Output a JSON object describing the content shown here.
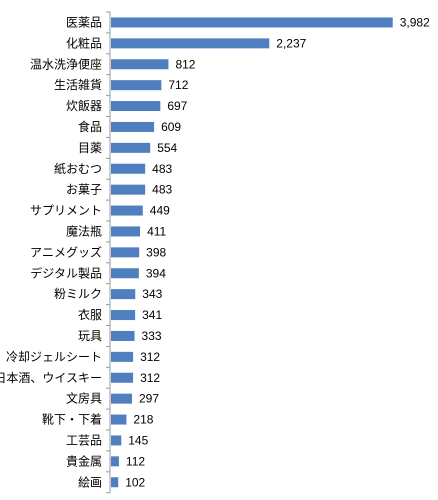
{
  "chart_data": {
    "type": "bar",
    "orientation": "horizontal",
    "title": "",
    "xlabel": "",
    "ylabel": "",
    "grid": false,
    "legend": "none",
    "bar_color": "#4f7fbf",
    "xlim": [
      0,
      4000
    ],
    "categories": [
      "医薬品",
      "化粧品",
      "温水洗浄便座",
      "生活雑貨",
      "炊飯器",
      "食品",
      "目薬",
      "紙おむつ",
      "お菓子",
      "サプリメント",
      "魔法瓶",
      "アニメグッズ",
      "デジタル製品",
      "粉ミルク",
      "衣服",
      "玩具",
      "冷却ジェルシート",
      "日本酒、ウイスキー",
      "文房具",
      "靴下・下着",
      "工芸品",
      "貴金属",
      "絵画"
    ],
    "values": [
      3982,
      2237,
      812,
      712,
      697,
      609,
      554,
      483,
      483,
      449,
      411,
      398,
      394,
      343,
      341,
      333,
      312,
      312,
      297,
      218,
      145,
      112,
      102
    ],
    "value_labels": [
      "3,982",
      "2,237",
      "812",
      "712",
      "697",
      "609",
      "554",
      "483",
      "483",
      "449",
      "411",
      "398",
      "394",
      "343",
      "341",
      "333",
      "312",
      "312",
      "297",
      "218",
      "145",
      "112",
      "102"
    ]
  }
}
